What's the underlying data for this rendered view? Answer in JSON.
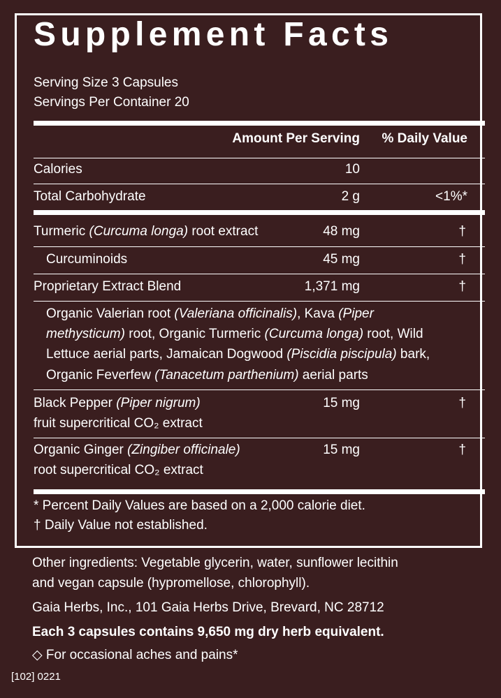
{
  "title": "Supplement Facts",
  "serving_size": "Serving Size 3 Capsules",
  "servings_per_container": "Servings Per Container 20",
  "col_amount": "Amount Per Serving",
  "col_dv": "% Daily Value",
  "rows": [
    {
      "name": "Calories",
      "amount": "10",
      "dv": ""
    },
    {
      "name": "Total Carbohydrate",
      "amount": "2 g",
      "dv": "<1%*"
    },
    {
      "name": "Turmeric",
      "name_italic": "(Curcuma longa)",
      "name_tail": "root extract",
      "amount": "48 mg",
      "dv": "†"
    },
    {
      "name": "Curcuminoids",
      "amount": "45 mg",
      "dv": "†"
    },
    {
      "name": "Proprietary Extract Blend",
      "amount": "1,371 mg",
      "dv": "†"
    },
    {
      "name": "Black Pepper",
      "name_italic": "(Piper nigrum)",
      "name_line2": "fruit supercritical CO₂ extract",
      "amount": "15 mg",
      "dv": "†"
    },
    {
      "name": "Organic Ginger",
      "name_italic": "(Zingiber officinale)",
      "name_line2": "root supercritical CO₂ extract",
      "amount": "15 mg",
      "dv": "†"
    }
  ],
  "blend_lines": [
    [
      "Organic Valerian root ",
      "(Valeriana officinalis)",
      ", Kava ",
      "(Piper"
    ],
    [
      "methysticum)",
      " root, Organic Turmeric ",
      "(Curcuma longa)",
      " root, Wild"
    ],
    [
      "Lettuce aerial parts, Jamaican Dogwood ",
      "(Piscidia piscipula)",
      " bark,"
    ],
    [
      "Organic Feverfew ",
      "(Tanacetum parthenium)",
      " aerial parts"
    ]
  ],
  "footnote_1": "*  Percent Daily Values are based on a 2,000 calorie diet.",
  "footnote_2": "† Daily Value not established.",
  "other_ingredients_1": "Other ingredients: Vegetable glycerin, water, sunflower lecithin",
  "other_ingredients_2": "and vegan capsule (hypromellose, chlorophyll).",
  "address": "Gaia Herbs, Inc., 101 Gaia Herbs Drive, Brevard, NC 28712",
  "herb_equivalent": "Each 3 capsules contains 9,650 mg dry herb equivalent.",
  "claim": "◇ For occasional aches and pains*",
  "code": "[102] 0221"
}
